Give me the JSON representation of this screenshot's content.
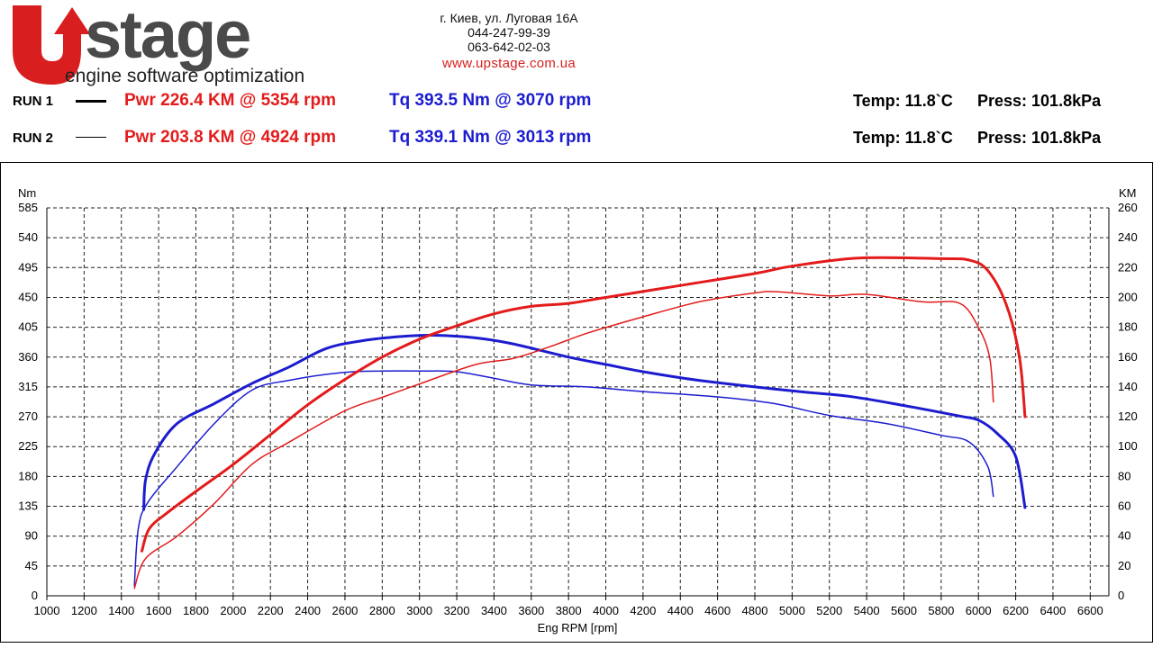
{
  "header": {
    "logo_text": "stage",
    "logo_u_text": "U",
    "logo_tagline": "engine software optimization",
    "address": "г. Киев, ул. Луговая 16А",
    "phone1": "044-247-99-39",
    "phone2": "063-642-02-03",
    "website": "www.upstage.com.ua"
  },
  "runs": [
    {
      "label": "RUN 1",
      "pwr": "Pwr  226.4 KM @ 5354 rpm",
      "tq": "Tq 393.5 Nm @ 3070 rpm",
      "temp": "Temp: 11.8`C",
      "press": "Press: 101.8kPa"
    },
    {
      "label": "RUN 2",
      "pwr": "Pwr  203.8 KM @ 4924 rpm",
      "tq": "Tq 339.1 Nm @ 3013 rpm",
      "temp": "Temp: 11.8`C",
      "press": "Press: 101.8kPa"
    }
  ],
  "colors": {
    "power": "#e31b1b",
    "torque": "#1c1ccf",
    "brand_red": "#d81e1e",
    "brand_gray": "#4a4a4a"
  },
  "chart_data": {
    "type": "line",
    "xlabel": "Eng RPM [rpm]",
    "ylabel_left": "Nm",
    "ylabel_right": "KM",
    "xlim": [
      1000,
      6700
    ],
    "xticks": [
      1000,
      1200,
      1400,
      1600,
      1800,
      2000,
      2200,
      2400,
      2600,
      2800,
      3000,
      3200,
      3400,
      3600,
      3800,
      4000,
      4200,
      4400,
      4600,
      4800,
      5000,
      5200,
      5400,
      5600,
      5800,
      6000,
      6200,
      6400,
      6600
    ],
    "ylim_left": [
      0,
      585
    ],
    "yticks_left": [
      0,
      45,
      90,
      135,
      180,
      225,
      270,
      315,
      360,
      405,
      450,
      495,
      540,
      585
    ],
    "ylim_right": [
      0,
      260
    ],
    "yticks_right": [
      0,
      20,
      40,
      60,
      80,
      100,
      120,
      140,
      160,
      180,
      200,
      220,
      240,
      260
    ],
    "grid": true,
    "series": [
      {
        "name": "Tq RUN 1",
        "axis": "left",
        "color": "#1c1ccf",
        "weight": "thick",
        "points": [
          [
            1520,
            130
          ],
          [
            1530,
            175
          ],
          [
            1580,
            215
          ],
          [
            1700,
            260
          ],
          [
            1900,
            290
          ],
          [
            2100,
            320
          ],
          [
            2300,
            345
          ],
          [
            2500,
            373
          ],
          [
            2700,
            385
          ],
          [
            2900,
            391
          ],
          [
            3070,
            393
          ],
          [
            3300,
            389
          ],
          [
            3500,
            380
          ],
          [
            3800,
            360
          ],
          [
            4000,
            349
          ],
          [
            4200,
            338
          ],
          [
            4500,
            325
          ],
          [
            5000,
            309
          ],
          [
            5300,
            301
          ],
          [
            5600,
            287
          ],
          [
            5900,
            271
          ],
          [
            6000,
            265
          ],
          [
            6100,
            245
          ],
          [
            6200,
            210
          ],
          [
            6250,
            133
          ]
        ]
      },
      {
        "name": "Tq RUN 2",
        "axis": "left",
        "color": "#1c1ccf",
        "weight": "thin",
        "points": [
          [
            1470,
            15
          ],
          [
            1490,
            100
          ],
          [
            1540,
            140
          ],
          [
            1700,
            195
          ],
          [
            1900,
            260
          ],
          [
            2100,
            310
          ],
          [
            2300,
            325
          ],
          [
            2600,
            337
          ],
          [
            2800,
            339
          ],
          [
            3013,
            339
          ],
          [
            3200,
            338
          ],
          [
            3400,
            328
          ],
          [
            3600,
            318
          ],
          [
            3900,
            315
          ],
          [
            4200,
            308
          ],
          [
            4600,
            300
          ],
          [
            4900,
            290
          ],
          [
            5200,
            272
          ],
          [
            5500,
            260
          ],
          [
            5800,
            242
          ],
          [
            5950,
            232
          ],
          [
            6050,
            195
          ],
          [
            6080,
            150
          ]
        ]
      },
      {
        "name": "Pwr RUN 1",
        "axis": "right",
        "color": "#e31b1b",
        "weight": "thick",
        "points": [
          [
            1510,
            30
          ],
          [
            1550,
            45
          ],
          [
            1650,
            56
          ],
          [
            1800,
            70
          ],
          [
            2000,
            88
          ],
          [
            2200,
            108
          ],
          [
            2400,
            128
          ],
          [
            2600,
            145
          ],
          [
            2800,
            160
          ],
          [
            3000,
            172
          ],
          [
            3200,
            181
          ],
          [
            3400,
            189
          ],
          [
            3600,
            194
          ],
          [
            3800,
            196
          ],
          [
            4000,
            200
          ],
          [
            4400,
            208
          ],
          [
            4800,
            216
          ],
          [
            5000,
            221
          ],
          [
            5354,
            226.4
          ],
          [
            5800,
            226
          ],
          [
            5950,
            225
          ],
          [
            6050,
            218
          ],
          [
            6150,
            195
          ],
          [
            6220,
            160
          ],
          [
            6250,
            120
          ]
        ]
      },
      {
        "name": "Pwr RUN 2",
        "axis": "right",
        "color": "#e31b1b",
        "weight": "thin",
        "points": [
          [
            1470,
            5
          ],
          [
            1530,
            25
          ],
          [
            1700,
            40
          ],
          [
            1900,
            62
          ],
          [
            2100,
            88
          ],
          [
            2300,
            103
          ],
          [
            2600,
            124
          ],
          [
            2800,
            133
          ],
          [
            3000,
            142
          ],
          [
            3300,
            155
          ],
          [
            3500,
            159
          ],
          [
            3700,
            167
          ],
          [
            3900,
            176
          ],
          [
            4200,
            187
          ],
          [
            4500,
            197
          ],
          [
            4800,
            203
          ],
          [
            4924,
            203.8
          ],
          [
            5200,
            201
          ],
          [
            5400,
            202
          ],
          [
            5700,
            197
          ],
          [
            5900,
            196
          ],
          [
            6000,
            180
          ],
          [
            6060,
            160
          ],
          [
            6080,
            130
          ]
        ]
      }
    ]
  }
}
